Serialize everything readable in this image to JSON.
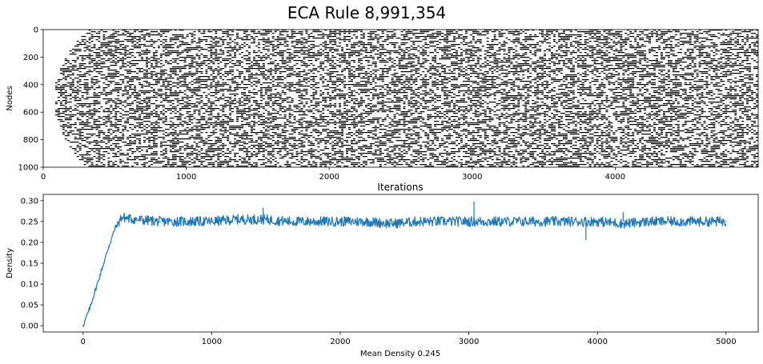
{
  "figure": {
    "title": "ECA Rule 8,991,354"
  },
  "chart_data": [
    {
      "type": "heatmap",
      "xlabel": "Iterations",
      "ylabel": "Nodes",
      "xlim": [
        0,
        5000
      ],
      "ylim": [
        1000,
        0
      ],
      "x_ticks": [
        0,
        1000,
        2000,
        3000,
        4000
      ],
      "y_ticks": [
        0,
        200,
        400,
        600,
        800,
        1000
      ],
      "colormap": [
        "#ffffff",
        "#000000"
      ],
      "grid": false
    },
    {
      "type": "line",
      "xlabel": "Mean Density 0.245",
      "ylabel": "Density",
      "xlim": [
        -310,
        5250
      ],
      "ylim": [
        -0.015,
        0.315
      ],
      "x_ticks": [
        0,
        1000,
        2000,
        3000,
        4000,
        5000
      ],
      "y_ticks": [
        0.0,
        0.05,
        0.1,
        0.15,
        0.2,
        0.25,
        0.3
      ],
      "y_tick_labels": [
        "0.00",
        "0.05",
        "0.10",
        "0.15",
        "0.20",
        "0.25",
        "0.30"
      ],
      "series": [
        {
          "color": "#1f77b4",
          "x": [
            0,
            50,
            100,
            150,
            200,
            250,
            300,
            400,
            600,
            800,
            1000,
            1200,
            1400,
            1600,
            1800,
            2000,
            2200,
            2400,
            2600,
            2800,
            3000,
            3200,
            3400,
            3600,
            3800,
            4000,
            4200,
            4400,
            4600,
            4800,
            5000
          ],
          "y": [
            0.0,
            0.04,
            0.09,
            0.14,
            0.19,
            0.235,
            0.26,
            0.255,
            0.25,
            0.25,
            0.25,
            0.255,
            0.255,
            0.25,
            0.25,
            0.25,
            0.25,
            0.245,
            0.25,
            0.25,
            0.25,
            0.25,
            0.25,
            0.25,
            0.25,
            0.25,
            0.245,
            0.25,
            0.25,
            0.25,
            0.25
          ]
        }
      ],
      "grid": false
    }
  ]
}
